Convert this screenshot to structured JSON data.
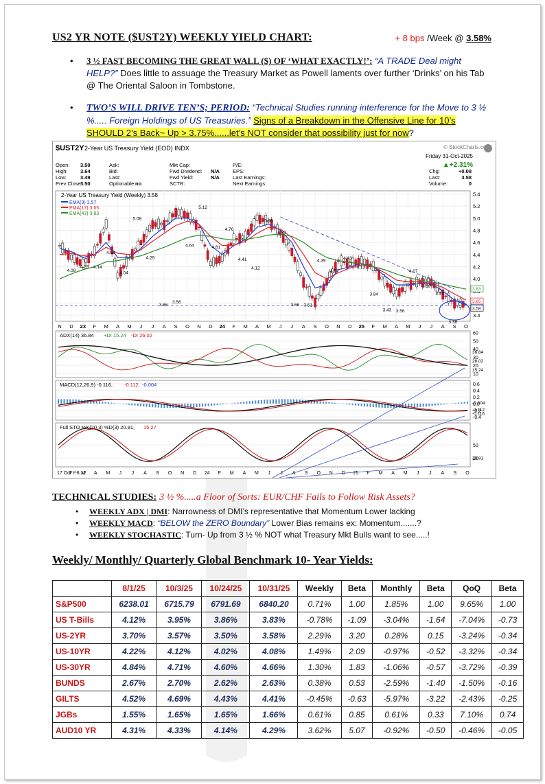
{
  "header": {
    "title": "US2 YR NOTE ($UST2Y) WEEKLY YIELD CHART:",
    "change": "+ 8 bps",
    "per": "/Week @",
    "yield": "3.58%"
  },
  "bullets": [
    {
      "head": "3 ½ FAST BECOMING THE GREAT WALL ($) OF ‘WHAT EXACTLY!’:",
      "quote": " “A TRADE Deal might HELP?”",
      "text": "   Does little to assuage the Treasury Market as Powell laments over further ‘Drinks’ on his Tab @ The Oriental Saloon in Tombstone."
    },
    {
      "head": "TWO’S WILL DRIVE TEN’S; PERIOD:",
      "quote": " “Technical Studies running interference for the Move to 3 ½ %..... Foreign Holdings of US Treasuries.”",
      "highlight": "Signs of a Breakdown in the Offensive Line for 10’s SHOULD 2’s Back~ Up > 3.75%......let’s NOT consider that possibility just for now",
      "tail": "?"
    }
  ],
  "chart": {
    "symbol": "$UST2Y",
    "name": "2-Year US Treasury Yield (EOD)",
    "exchange": "INDX",
    "source": "© StockCharts.com",
    "date": "Friday  31-Oct-2025",
    "pct_change": "▲+2.31%",
    "quote_labels": [
      "Open:",
      "High:",
      "Low:",
      "Prev Close:"
    ],
    "quote_values": [
      "3.50",
      "3.64",
      "3.49",
      "3.50"
    ],
    "ask_labels": [
      "Ask:",
      "Bid:",
      "Last:",
      "Optionable:"
    ],
    "ask_values": [
      "",
      "",
      "",
      "no"
    ],
    "cap_labels": [
      "Mkt Cap:",
      "Fwd Dividend:",
      "Fwd Yield:",
      "SCTR:"
    ],
    "cap_values": [
      "",
      "N/A",
      "N/A",
      ""
    ],
    "pe_labels": [
      "P/E:",
      "EPS:",
      "Last Earnings:",
      "Next Earnings:"
    ],
    "right_labels": [
      "Chg:",
      "Last:",
      "Volume:"
    ],
    "right_values": [
      "+0.08",
      "3.58",
      "0"
    ],
    "main_legend": "2-Year US Treasury Yield (Weekly) 3.58",
    "ema_labels": [
      "EMA(9) 3.57",
      "EMA(17) 3.65",
      "EMA(43) 3.83"
    ],
    "ema_colors": [
      "#1f3ed1",
      "#e0252b",
      "#2a8a2a"
    ],
    "adx_label": "ADX(14) 36.84",
    "pdi_label": "+DI 15.24",
    "mdi_label": "-DI 26.02",
    "macd_label": "MACD(12,26,9) -0.116,",
    "macd_sig": "-0.112,",
    "macd_hist": "-0.004",
    "sto_label": "Full STO %K(20,3) %D(3) 20.91,",
    "sto_d": "15.27",
    "x_labels": [
      "N",
      "D",
      "23",
      "F",
      "M",
      "A",
      "M",
      "J",
      "J",
      "A",
      "S",
      "O",
      "N",
      "D",
      "24",
      "F",
      "M",
      "A",
      "M",
      "J",
      "J",
      "A",
      "S",
      "O",
      "N",
      "D",
      "25",
      "F",
      "M",
      "A",
      "M",
      "J",
      "J",
      "A",
      "S",
      "O"
    ],
    "bottom_x_labels": [
      "17 Oct Y-8.12",
      "F",
      "M",
      "A",
      "M",
      "J",
      "J",
      "A",
      "S",
      "O",
      "N",
      "D",
      "24",
      "F",
      "M",
      "A",
      "M",
      "J",
      "J",
      "A",
      "S",
      "O",
      "N",
      "D",
      "25",
      "F",
      "M",
      "A",
      "M",
      "J",
      "J",
      "A",
      "S",
      "O"
    ],
    "main_y_ticks": [
      "5.4",
      "5.2",
      "5.0",
      "4.8",
      "4.6",
      "4.4",
      "4.2",
      "4.0",
      "3.8",
      "3.6",
      "3.4"
    ],
    "adx_ticks": [
      "60",
      "50",
      "40",
      "30",
      "20",
      "10"
    ],
    "macd_ticks": [
      "0.6",
      "0.4",
      "0.2",
      "0.0",
      "-0.2",
      "-0.4"
    ],
    "sto_ticks": [
      "50",
      "20"
    ],
    "right_tags": [
      "3.83",
      "3.65",
      "3.57",
      "3.58"
    ],
    "adx_tags": [
      "36.84",
      "26.02",
      "15.24"
    ],
    "macd_tags": [
      "-0.004",
      "-0.112",
      "-0.116"
    ],
    "sto_tag": "20.91",
    "price_annotations": [
      "4.08",
      "4.29",
      "4.14",
      "4.52",
      "4.04",
      "5.08",
      "4.29",
      "3.66",
      "3.56",
      "4.64",
      "5.12",
      "4.61",
      "4.76",
      "4.41",
      "4.12",
      "5.05",
      "4.71",
      "3.66",
      "3.51",
      "4.39",
      "4.07",
      "4.43",
      "4.13",
      "3.84",
      "3.43",
      "3.56",
      "4.07",
      "3.97",
      "3.70",
      "3.38"
    ]
  },
  "chart_data": {
    "type": "line",
    "title": "2-Year US Treasury Yield (Weekly) 3.58",
    "ylabel": "",
    "ylim": [
      3.3,
      5.45
    ],
    "x": [
      "N",
      "D",
      "23",
      "F",
      "M",
      "A",
      "M",
      "J",
      "J",
      "A",
      "S",
      "O",
      "N",
      "D",
      "24",
      "F",
      "M",
      "A",
      "M",
      "J",
      "J",
      "A",
      "S",
      "O",
      "N",
      "D",
      "25",
      "F",
      "M",
      "A",
      "M",
      "J",
      "J",
      "A",
      "S",
      "O"
    ],
    "series": [
      {
        "name": "2-Year US Treasury Yield (Weekly)",
        "values": [
          4.55,
          4.35,
          4.25,
          4.45,
          4.9,
          4.05,
          4.35,
          4.6,
          4.9,
          4.9,
          5.1,
          5.05,
          4.85,
          4.25,
          4.35,
          4.65,
          4.7,
          5.0,
          4.95,
          4.75,
          4.45,
          3.95,
          3.62,
          3.95,
          4.3,
          4.25,
          4.3,
          4.2,
          3.95,
          3.75,
          3.9,
          3.95,
          3.95,
          3.75,
          3.6,
          3.58
        ]
      },
      {
        "name": "EMA(9)",
        "values": [
          4.5,
          4.45,
          4.35,
          4.4,
          4.6,
          4.35,
          4.35,
          4.5,
          4.7,
          4.85,
          5.0,
          5.0,
          4.9,
          4.55,
          4.4,
          4.55,
          4.65,
          4.85,
          4.9,
          4.8,
          4.6,
          4.2,
          3.85,
          3.9,
          4.15,
          4.2,
          4.25,
          4.2,
          4.05,
          3.9,
          3.9,
          3.92,
          3.92,
          3.8,
          3.65,
          3.57
        ]
      },
      {
        "name": "EMA(17)",
        "values": [
          4.4,
          4.42,
          4.38,
          4.4,
          4.52,
          4.42,
          4.4,
          4.48,
          4.62,
          4.75,
          4.88,
          4.95,
          4.9,
          4.7,
          4.55,
          4.55,
          4.62,
          4.75,
          4.85,
          4.82,
          4.68,
          4.4,
          4.1,
          4.0,
          4.1,
          4.18,
          4.22,
          4.2,
          4.1,
          3.98,
          3.95,
          3.95,
          3.93,
          3.86,
          3.75,
          3.65
        ]
      },
      {
        "name": "EMA(43)",
        "values": [
          4.0,
          4.08,
          4.15,
          4.2,
          4.28,
          4.3,
          4.34,
          4.38,
          4.45,
          4.52,
          4.6,
          4.68,
          4.72,
          4.7,
          4.66,
          4.64,
          4.65,
          4.68,
          4.72,
          4.74,
          4.7,
          4.6,
          4.46,
          4.35,
          4.3,
          4.27,
          4.24,
          4.2,
          4.15,
          4.08,
          4.02,
          3.98,
          3.95,
          3.91,
          3.87,
          3.83
        ]
      }
    ]
  },
  "studies": {
    "title": "TECHNICAL STUDIES:",
    "subtitle": "3 ½ %.....a Floor of Sorts: EUR/CHF Fails to Follow Risk Assets?",
    "items": [
      {
        "head": "WEEKLY ADX | DMI",
        "text": ": Narrowness of DMI’s representative that Momentum Lower lacking"
      },
      {
        "head": "WEEKLY MACD",
        "text": ": ",
        "quote": "“BELOW the ZERO Boundary”",
        "tail": "  Lower Bias remains ex: Momentum.......?"
      },
      {
        "head": "WEEKLY STOCHASTIC",
        "text": ": Turn- Up from 3 ½ % NOT what Treasury Mkt Bulls want to see.....!"
      }
    ]
  },
  "table": {
    "title": "Weekly/ Monthly/ Quarterly Global Benchmark 10- Year Yields",
    "title_colon": ":",
    "headers": [
      "",
      "8/1/25",
      "10/3/25",
      "10/24/25",
      "10/31/25",
      "Weekly",
      "Beta",
      "Monthly",
      "Beta",
      "QoQ",
      "Beta"
    ],
    "rows": [
      [
        "S&P500",
        "6238.01",
        "6715.79",
        "6791.69",
        "6840.20",
        "0.71%",
        "1.00",
        "1.85%",
        "1.00",
        "9.65%",
        "1.00"
      ],
      [
        "US T-Bills",
        "4.12%",
        "3.95%",
        "3.86%",
        "3.83%",
        "-0.78%",
        "-1.09",
        "-3.04%",
        "-1.64",
        "-7.04%",
        "-0.73"
      ],
      [
        "US-2YR",
        "3.70%",
        "3.57%",
        "3.50%",
        "3.58%",
        "2.29%",
        "3.20",
        "0.28%",
        "0.15",
        "-3.24%",
        "-0.34"
      ],
      [
        "US-10YR",
        "4.22%",
        "4.12%",
        "4.02%",
        "4.08%",
        "1.49%",
        "2.09",
        "-0.97%",
        "-0.52",
        "-3.32%",
        "-0.34"
      ],
      [
        "US-30YR",
        "4.84%",
        "4.71%",
        "4.60%",
        "4.66%",
        "1.30%",
        "1.83",
        "-1.06%",
        "-0.57",
        "-3.72%",
        "-0.39"
      ],
      [
        "BUNDS",
        "2.67%",
        "2.70%",
        "2.62%",
        "2.63%",
        "0.38%",
        "0.53",
        "-2.59%",
        "-1.40",
        "-1.50%",
        "-0.16"
      ],
      [
        "GILTS",
        "4.52%",
        "4.69%",
        "4.43%",
        "4.41%",
        "-0.45%",
        "-0.63",
        "-5.97%",
        "-3.22",
        "-2.43%",
        "-0.25"
      ],
      [
        "JGBs",
        "1.55%",
        "1.65%",
        "1.65%",
        "1.66%",
        "0.61%",
        "0.85",
        "0.61%",
        "0.33",
        "7.10%",
        "0.74"
      ],
      [
        "AUD10 YR",
        "4.31%",
        "4.33%",
        "4.14%",
        "4.29%",
        "3.62%",
        "5.07",
        "-0.92%",
        "-0.50",
        "-0.46%",
        "-0.05"
      ]
    ]
  }
}
